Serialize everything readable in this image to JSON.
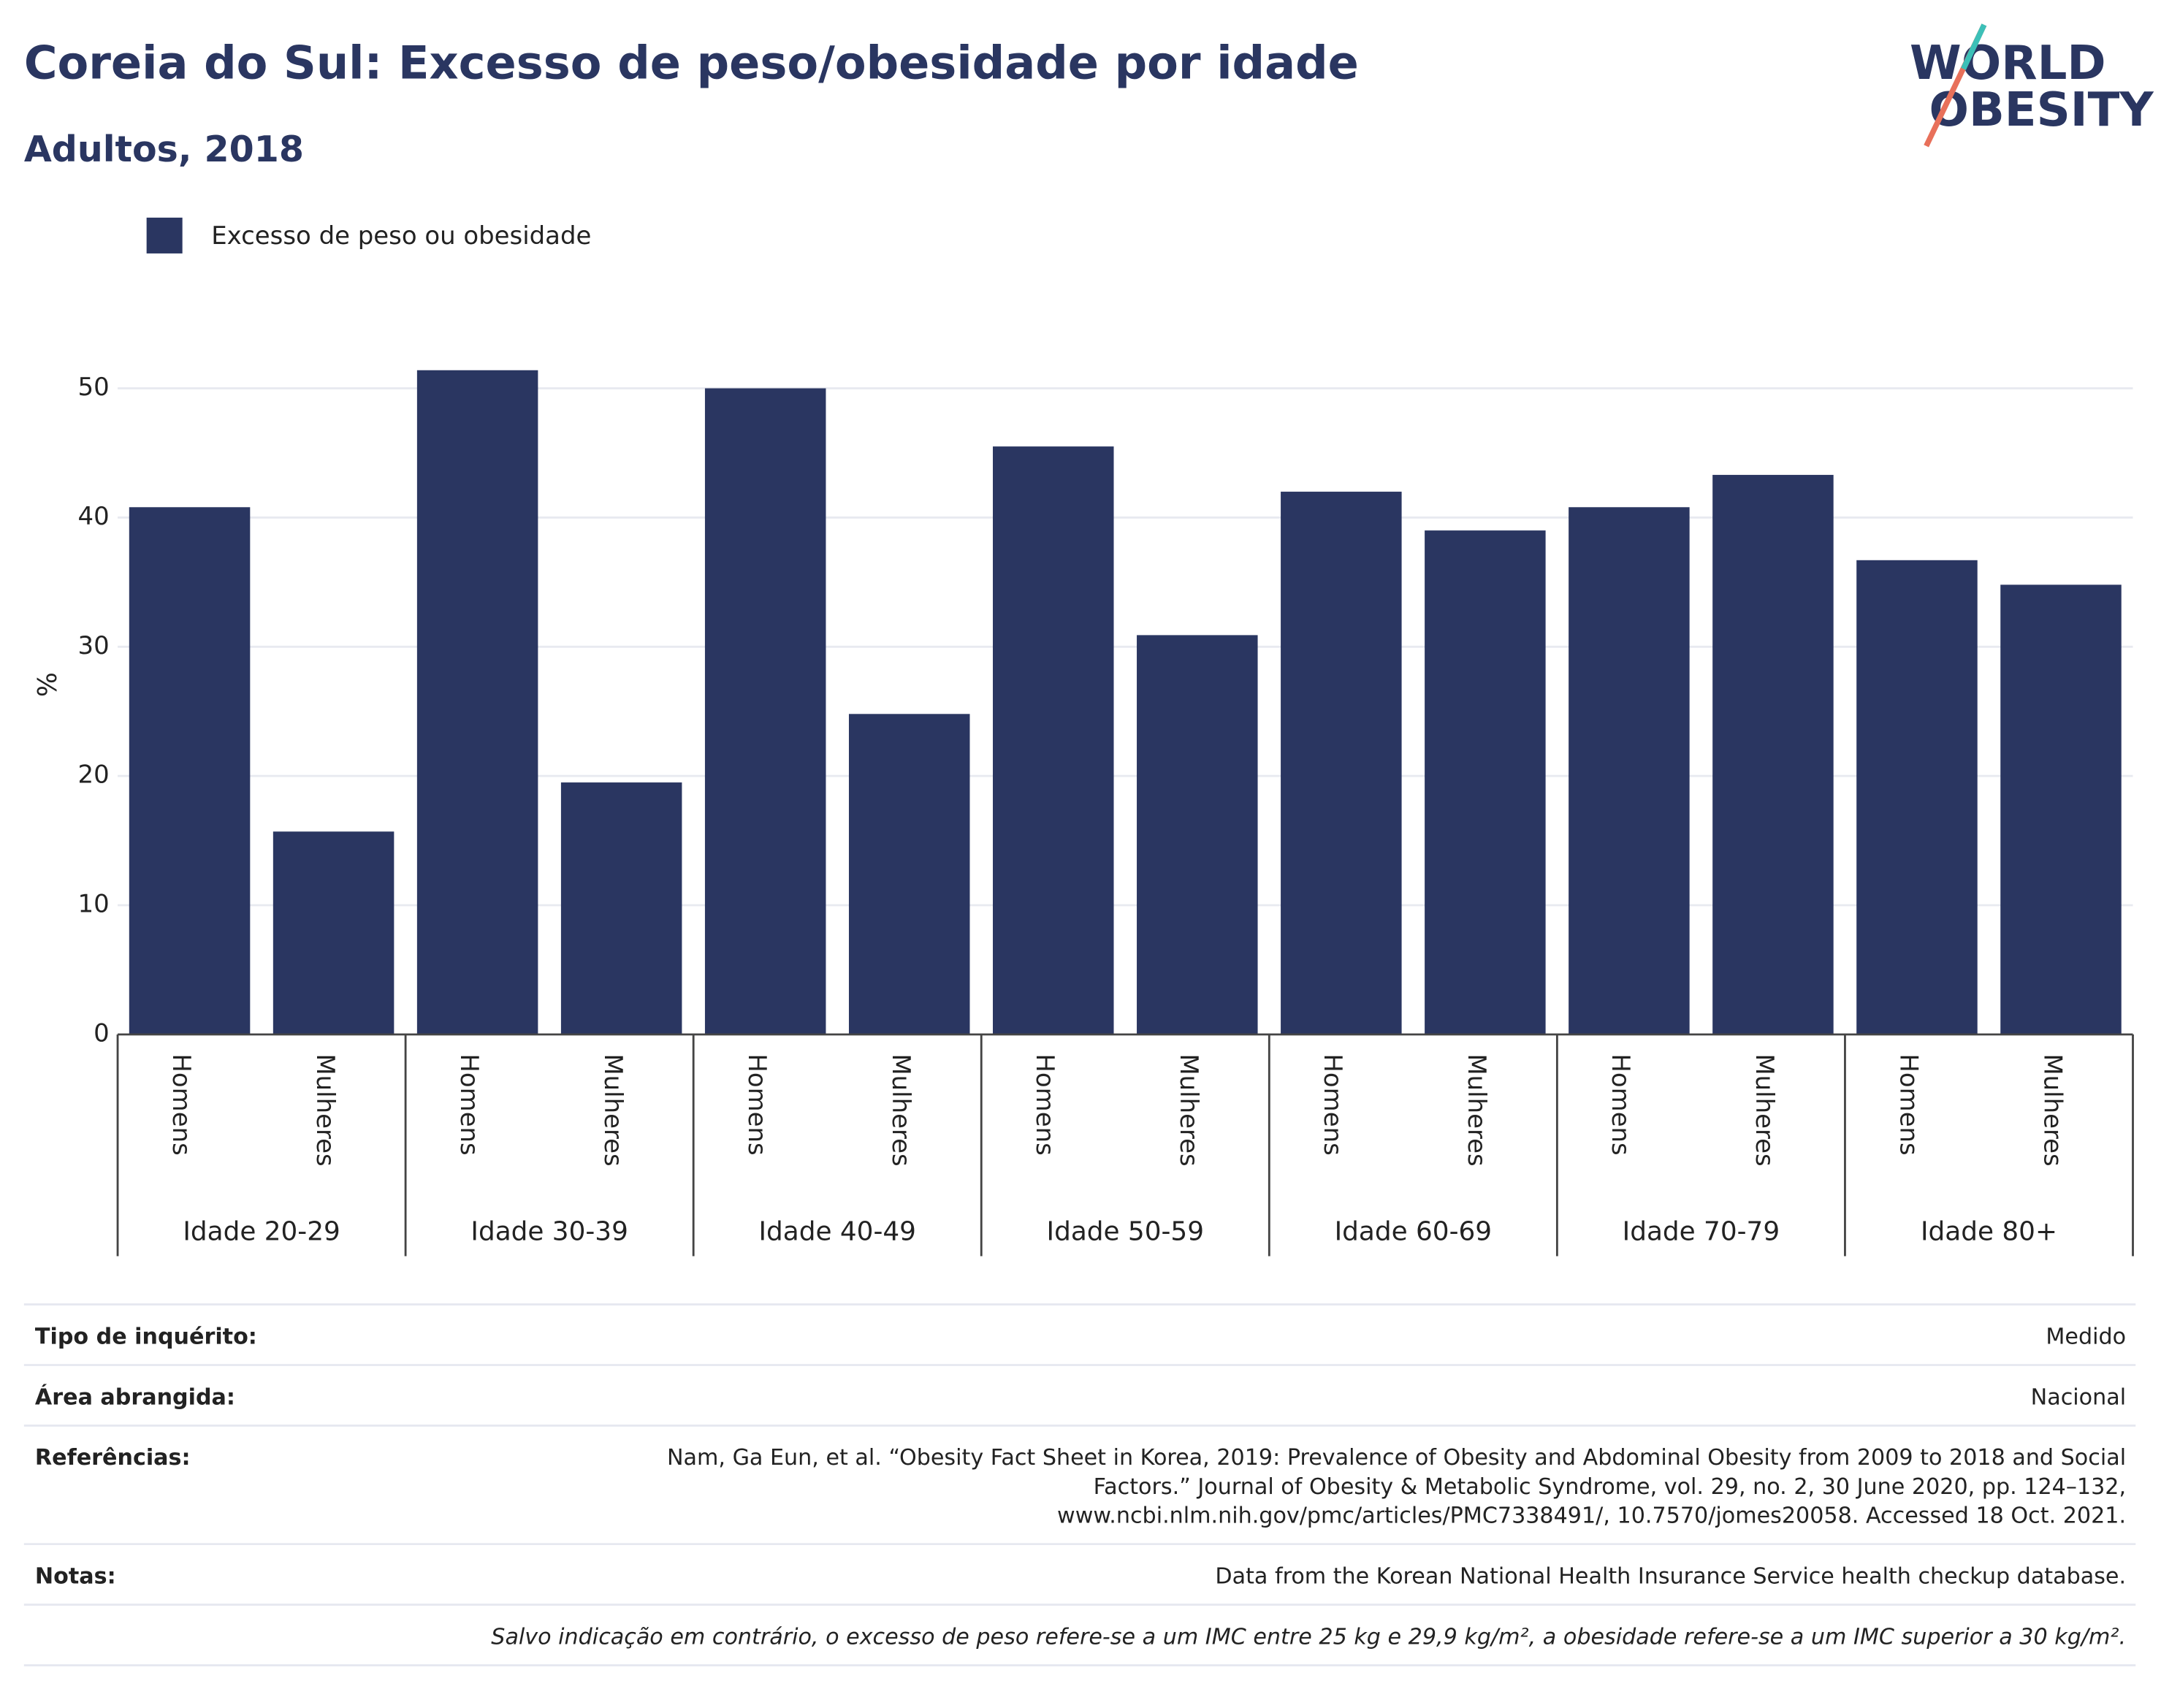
{
  "chart_data": {
    "type": "bar",
    "title": "Coreia do Sul: Excesso de peso/obesidade por idade",
    "subtitle": "Adultos, 2018",
    "y_label": "%",
    "categories": [
      "Homens",
      "Mulheres",
      "Homens",
      "Mulheres",
      "Homens",
      "Mulheres",
      "Homens",
      "Mulheres",
      "Homens",
      "Mulheres",
      "Homens",
      "Mulheres",
      "Homens",
      "Mulheres"
    ],
    "groups": [
      "Idade 20-29",
      "Idade 30-39",
      "Idade 40-49",
      "Idade 50-59",
      "Idade 60-69",
      "Idade 70-79",
      "Idade 80+"
    ],
    "series": [
      {
        "name": "Excesso de peso ou obesidade",
        "color": "#2a3661",
        "values": [
          40.8,
          15.7,
          51.4,
          19.5,
          50.0,
          24.8,
          45.5,
          30.9,
          42.0,
          39.0,
          40.8,
          43.3,
          36.7,
          34.8
        ]
      }
    ],
    "ylim": [
      0,
      55
    ],
    "yticks": [
      0,
      10,
      20,
      30,
      40,
      50
    ],
    "grid": true,
    "legend": "top-left"
  },
  "logo": [
    "WORLD",
    "OBESITY"
  ],
  "info": [
    {
      "label": "Tipo de inquérito:",
      "value": [
        "Medido"
      ]
    },
    {
      "label": "Área abrangida:",
      "value": [
        "Nacional"
      ]
    },
    {
      "label": "Referências:",
      "value": [
        "Nam, Ga Eun, et al. “Obesity Fact Sheet in Korea, 2019: Prevalence of Obesity and Abdominal Obesity from 2009 to 2018 and Social",
        "Factors.” Journal of Obesity & Metabolic Syndrome, vol. 29, no. 2, 30 June 2020, pp. 124–132,",
        "www.ncbi.nlm.nih.gov/pmc/articles/PMC7338491/, 10.7570/jomes20058. Accessed 18 Oct. 2021."
      ]
    },
    {
      "label": "Notas:",
      "value": [
        "Data from the Korean National Health Insurance Service health checkup database."
      ]
    }
  ],
  "disclaimer": "Salvo indicação em contrário, o excesso de peso refere-se a um IMC entre 25 kg e 29,9 kg/m², a obesidade refere-se a um IMC superior a 30 kg/m²."
}
